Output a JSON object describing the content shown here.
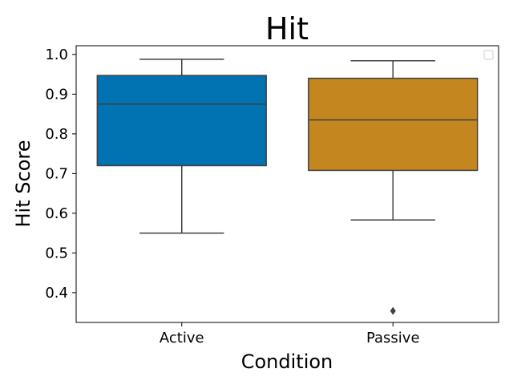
{
  "chart_data": {
    "type": "box",
    "title": "Hit",
    "xlabel": "Condition",
    "ylabel": "Hit Score",
    "ylim": [
      0.325,
      1.022
    ],
    "yticks": [
      0.4,
      0.5,
      0.6,
      0.7,
      0.8,
      0.9,
      1.0
    ],
    "ytick_labels": [
      "0.4",
      "0.5",
      "0.6",
      "0.7",
      "0.8",
      "0.9",
      "1.0"
    ],
    "grid": false,
    "legend": {
      "placement": "top-right",
      "entries": []
    },
    "categories": [
      "Active",
      "Passive"
    ],
    "boxes": [
      {
        "name": "Active",
        "whisker_low": 0.55,
        "q1": 0.72,
        "median": 0.875,
        "q3": 0.947,
        "whisker_high": 0.988,
        "outliers": [],
        "color": "#0173b2"
      },
      {
        "name": "Passive",
        "whisker_low": 0.583,
        "q1": 0.708,
        "median": 0.835,
        "q3": 0.94,
        "whisker_high": 0.984,
        "outliers": [
          0.354
        ],
        "color": "#c4871f"
      }
    ],
    "line_color": "#3f3f3f"
  }
}
